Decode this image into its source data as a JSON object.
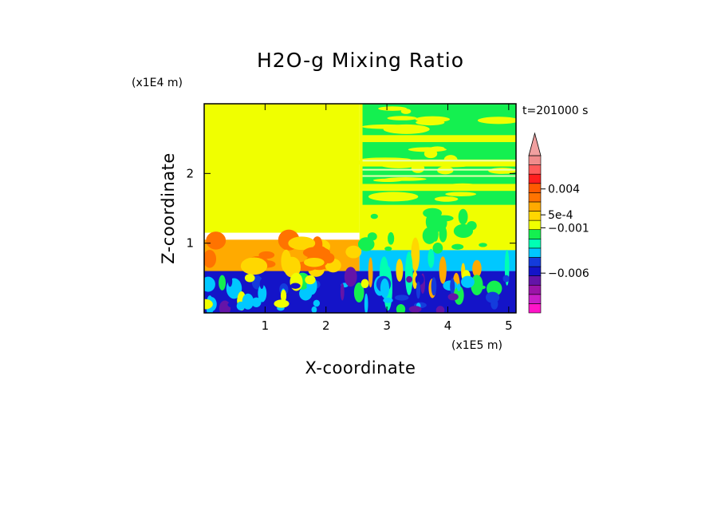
{
  "chart_data": {
    "type": "heatmap",
    "title": "H2O-g Mixing Ratio",
    "xlabel": "X-coordinate",
    "ylabel": "Z-coordinate",
    "x_unit": "(x1E5 m)",
    "y_unit": "(x1E4 m)",
    "time_label": "t=201000 s",
    "xlim": [
      0,
      5.12
    ],
    "ylim": [
      0,
      3.0
    ],
    "x_ticks": [
      {
        "value": 1,
        "label": "1"
      },
      {
        "value": 2,
        "label": "2"
      },
      {
        "value": 3,
        "label": "3"
      },
      {
        "value": 4,
        "label": "4"
      },
      {
        "value": 5,
        "label": "5"
      }
    ],
    "y_ticks": [
      {
        "value": 1,
        "label": "1"
      },
      {
        "value": 2,
        "label": "2"
      }
    ],
    "colorbar": {
      "levels_bottom_to_top": [
        {
          "color": "#ff14c8"
        },
        {
          "color": "#c81ec8"
        },
        {
          "color": "#9b14a8"
        },
        {
          "color": "#6414a8"
        },
        {
          "color": "#1414c8"
        },
        {
          "color": "#143cdc"
        },
        {
          "color": "#00c8ff"
        },
        {
          "color": "#00ffb4"
        },
        {
          "color": "#14f050"
        },
        {
          "color": "#f0ff00"
        },
        {
          "color": "#ffd700"
        },
        {
          "color": "#ffaa00"
        },
        {
          "color": "#ff7300"
        },
        {
          "color": "#ff5a00"
        },
        {
          "color": "#ff1e1e"
        },
        {
          "color": "#ff5a5a"
        },
        {
          "color": "#f08c8c"
        }
      ],
      "extend_color": "#f0a0a0",
      "labels": [
        {
          "text": "0.004",
          "value": 0.004
        },
        {
          "text": "5e-4",
          "value": 0.0005
        },
        {
          "text": "−0.001",
          "value": -0.001
        },
        {
          "text": "−0.006",
          "value": -0.006
        }
      ]
    },
    "regions": [
      {
        "name": "upper-left-uniform",
        "x": [
          0,
          2.55
        ],
        "z": [
          1.15,
          3.0
        ],
        "color": "#f0ff00"
      },
      {
        "name": "upper-right-mixed",
        "x": [
          2.55,
          5.12
        ],
        "z": [
          0.9,
          3.0
        ],
        "color": "#f0ff00"
      },
      {
        "name": "green-band-top",
        "x": [
          2.6,
          5.12
        ],
        "z": [
          2.55,
          3.0
        ],
        "color": "#14f050"
      },
      {
        "name": "green-band-upper",
        "x": [
          2.6,
          5.12
        ],
        "z": [
          2.2,
          2.45
        ],
        "color": "#14f050"
      },
      {
        "name": "green-band-mid",
        "x": [
          2.6,
          5.12
        ],
        "z": [
          1.85,
          2.1
        ],
        "color": "#14f050"
      },
      {
        "name": "green-band-low",
        "x": [
          2.6,
          5.12
        ],
        "z": [
          1.55,
          1.75
        ],
        "color": "#14f050"
      },
      {
        "name": "orange-layer-left",
        "x": [
          0,
          2.55
        ],
        "z": [
          0.55,
          1.05
        ],
        "color": "#ffaa00"
      },
      {
        "name": "cyan-layer-right",
        "x": [
          2.55,
          5.12
        ],
        "z": [
          0.6,
          0.9
        ],
        "color": "#00c8ff"
      },
      {
        "name": "blue-boundary-layer",
        "x": [
          0,
          5.12
        ],
        "z": [
          0,
          0.6
        ],
        "color": "#1414c8"
      }
    ]
  }
}
